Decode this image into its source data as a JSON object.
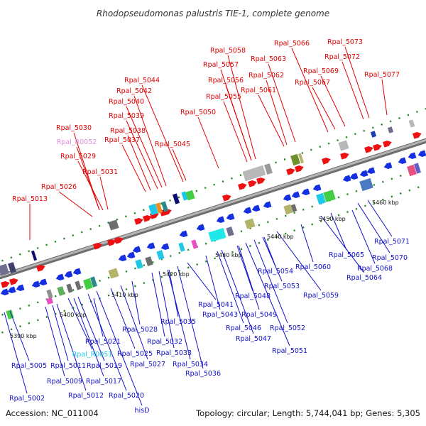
{
  "title": "Rhodopseudomonas palustris TIE-1, complete genome",
  "accession_text": "Accession: NC_011004",
  "topology_text": "Topology: circular; Length: 5,744,041 bp; Genes: 5,305",
  "colors": {
    "upper_labels": "#e00000",
    "lower_labels": "#1010c8",
    "ncrna_upper": "#e090d8",
    "ncrna_lower": "#20c8e8",
    "axis": "#8c8c8c",
    "tick": "#2a8a2a"
  },
  "scale_ticks": [
    "5390 kbp",
    "5400 kbp",
    "5410 kbp",
    "5420 kbp",
    "5430 kbp",
    "5440 kbp",
    "5450 kbp",
    "5460 kbp"
  ],
  "upper_labels": [
    "Rpal_5013",
    "Rpal_5026",
    "Rpal_5029",
    "Rpal_5031",
    "Rpal_R0052",
    "Rpal_5030",
    "Rpal_5037",
    "Rpal_5038",
    "Rpal_5039",
    "Rpal_5040",
    "Rpal_5042",
    "Rpal_5044",
    "Rpal_5045",
    "Rpal_5050",
    "Rpal_5055",
    "Rpal_5056",
    "Rpal_5057",
    "Rpal_5058",
    "Rpal_5061",
    "Rpal_5062",
    "Rpal_5063",
    "Rpal_5066",
    "Rpal_5067",
    "Rpal_5069",
    "Rpal_5072",
    "Rpal_5073",
    "Rpal_5077"
  ],
  "lower_labels": [
    "Rpal_5002",
    "Rpal_5005",
    "Rpal_5009",
    "Rpal_5011",
    "Rpal_5012",
    "Rpal_R0051",
    "Rpal_5017",
    "Rpal_5019",
    "Rpal_5020",
    "hisD",
    "Rpal_5021",
    "Rpal_5025",
    "Rpal_5027",
    "Rpal_5028",
    "Rpal_5032",
    "Rpal_5033",
    "Rpal_5034",
    "Rpal_5035",
    "Rpal_5036",
    "Rpal_5041",
    "Rpal_5043",
    "Rpal_5046",
    "Rpal_5047",
    "Rpal_5048",
    "Rpal_5049",
    "Rpal_5051",
    "Rpal_5052",
    "Rpal_5053",
    "Rpal_5054",
    "Rpal_5059",
    "Rpal_5060",
    "Rpal_5064",
    "Rpal_5065",
    "Rpal_5068",
    "Rpal_5070",
    "Rpal_5071"
  ]
}
